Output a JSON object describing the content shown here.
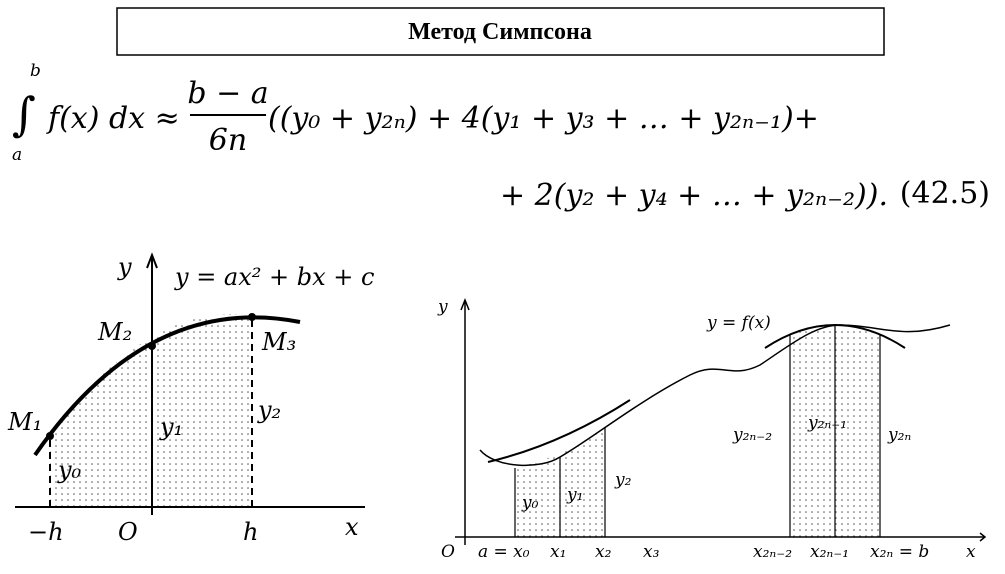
{
  "header": {
    "title": "Метод Симпсона"
  },
  "formula": {
    "integral_upper": "b",
    "integral_lower": "a",
    "lhs": "f(x) dx ≈",
    "numerator": "b − a",
    "denominator": "6n",
    "line1": "((y₀ + y₂ₙ) + 4(y₁ + y₃ + … + y₂ₙ₋₁)+",
    "line2": "+ 2(y₂ + y₄ + … + y₂ₙ₋₂)).",
    "number": "(42.5)"
  },
  "left_figure": {
    "y_axis": "y",
    "curve": "y = ax² + bx + c",
    "m1": "M₁",
    "m2": "M₂",
    "m3": "M₃",
    "y0": "y₀",
    "y1": "y₁",
    "y2": "y₂",
    "minus_h": "−h",
    "origin": "O",
    "h": "h",
    "x_axis": "x"
  },
  "right_figure": {
    "y_axis": "y",
    "curve": "y = f(x)",
    "y0": "y₀",
    "y1": "y₁",
    "y2": "y₂",
    "y2n_2": "y₂ₙ₋₂",
    "y2n_1": "y₂ₙ₋₁",
    "y2n": "y₂ₙ",
    "origin": "O",
    "x0": "a = x₀",
    "x1": "x₁",
    "x2": "x₂",
    "x3": "x₃",
    "x2n_2": "x₂ₙ₋₂",
    "x2n_1": "x₂ₙ₋₁",
    "x2n": "x₂ₙ = b",
    "x_axis": "x"
  }
}
